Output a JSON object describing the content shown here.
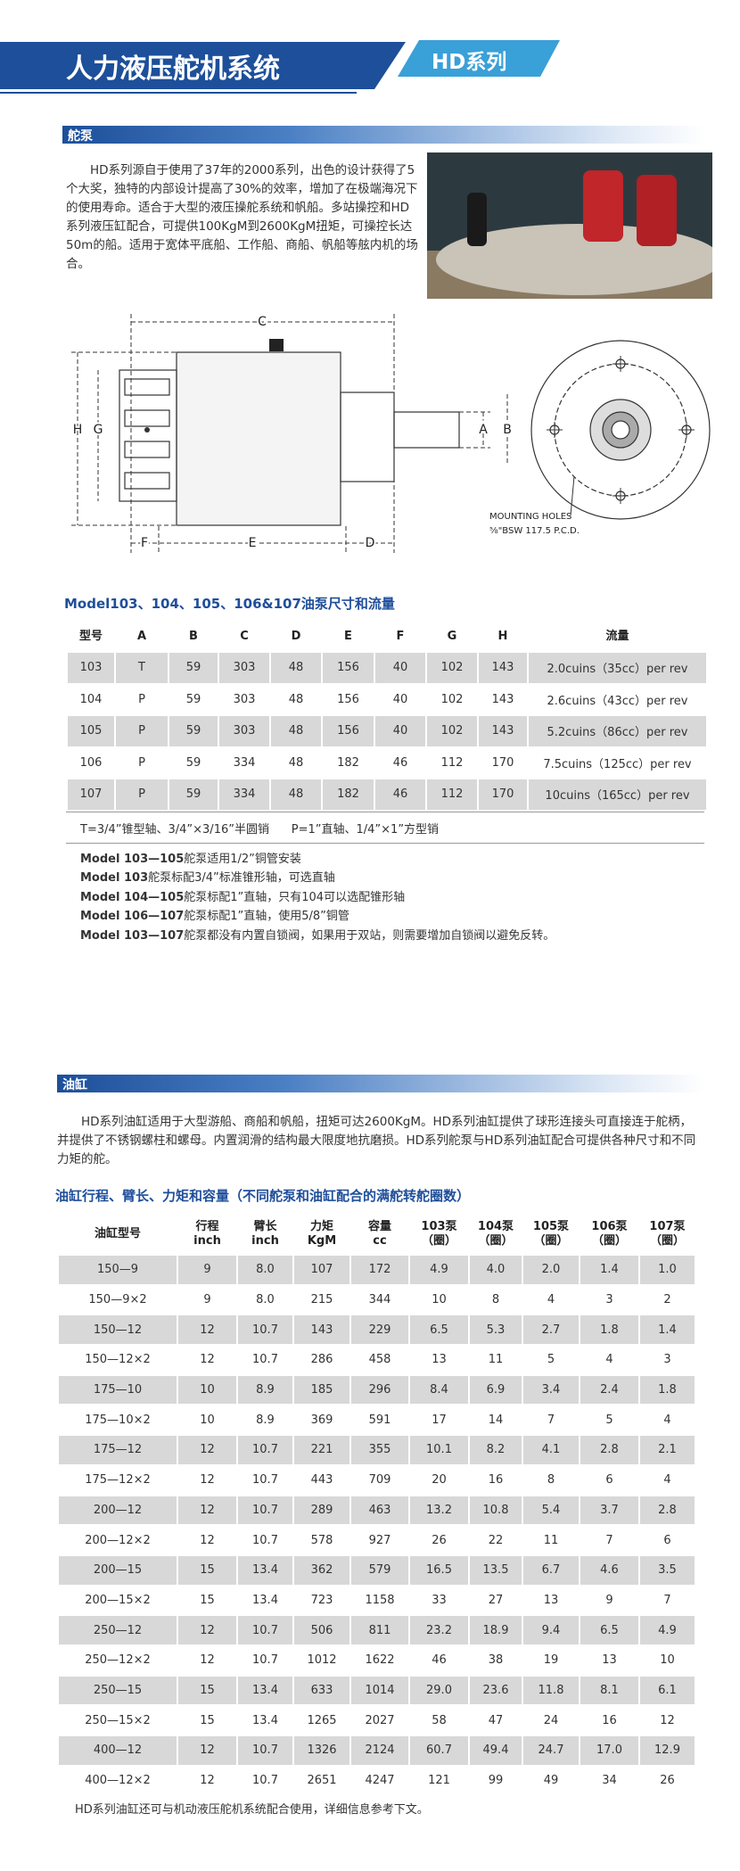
{
  "header": {
    "title": "人力液压舵机系统",
    "series": "HD系列"
  },
  "pump": {
    "heading": "舵泵",
    "paragraph": "HD系列源自于使用了37年的2000系列，出色的设计获得了5个大奖，独特的内部设计提高了30%的效率，增加了在极端海况下的使用寿命。适合于大型的液压操舵系统和帆船。多站操控和HD系列液压缸配合，可提供100KgM到2600KgM扭矩，可操控长达50m的船。适用于宽体平底船、工作船、商船、帆船等舷内机的场合。",
    "drawing_labels": [
      "C",
      "H",
      "G",
      "F",
      "E",
      "D",
      "A",
      "B"
    ],
    "mounting_note": [
      "MOUNTING HOLES",
      "⅝\"BSW  117.5  P.C.D."
    ]
  },
  "pump_table": {
    "title": "Model103、104、105、106&107油泵尺寸和流量",
    "columns": [
      "型号",
      "A",
      "B",
      "C",
      "D",
      "E",
      "F",
      "G",
      "H",
      "流量"
    ],
    "rows": [
      [
        "103",
        "T",
        "59",
        "303",
        "48",
        "156",
        "40",
        "102",
        "143",
        "2.0cuins（35cc）per rev"
      ],
      [
        "104",
        "P",
        "59",
        "303",
        "48",
        "156",
        "40",
        "102",
        "143",
        "2.6cuins（43cc）per rev"
      ],
      [
        "105",
        "P",
        "59",
        "303",
        "48",
        "156",
        "40",
        "102",
        "143",
        "5.2cuins（86cc）per rev"
      ],
      [
        "106",
        "P",
        "59",
        "334",
        "48",
        "182",
        "46",
        "112",
        "170",
        "7.5cuins（125cc）per rev"
      ],
      [
        "107",
        "P",
        "59",
        "334",
        "48",
        "182",
        "46",
        "112",
        "170",
        "10cuins（165cc）per rev"
      ]
    ],
    "note": "T=3/4”锥型轴、3/4”×3/16”半圆销      P=1”直轴、1/4”×1”方型销"
  },
  "model_notes": [
    {
      "model": "Model 103—105",
      "text": "舵泵适用1/2”铜管安装"
    },
    {
      "model": "Model 103",
      "text": "舵泵标配3/4”标准锥形轴，可选直轴"
    },
    {
      "model": "Model 104—105",
      "text": "舵泵标配1”直轴，只有104可以选配锥形轴"
    },
    {
      "model": "Model 106—107",
      "text": "舵泵标配1”直轴，使用5/8”铜管"
    },
    {
      "model": "Model 103—107",
      "text": "舵泵都没有内置自锁阀，如果用于双站，则需要增加自锁阀以避免反转。"
    }
  ],
  "cylinder": {
    "heading": "油缸",
    "paragraph": "HD系列油缸适用于大型游船、商船和帆船，扭矩可达2600KgM。HD系列油缸提供了球形连接头可直接连于舵柄，并提供了不锈钢螺柱和螺母。内置润滑的结构最大限度地抗磨损。HD系列舵泵与HD系列油缸配合可提供各种尺寸和不同力矩的舵。"
  },
  "cylinder_table": {
    "title": "油缸行程、臂长、力矩和容量（不同舵泵和油缸配合的满舵转舵圈数）",
    "columns": [
      [
        "油缸型号"
      ],
      [
        "行程",
        "inch"
      ],
      [
        "臂长",
        "inch"
      ],
      [
        "力矩",
        "KgM"
      ],
      [
        "容量",
        "cc"
      ],
      [
        "103泵",
        "（圈）"
      ],
      [
        "104泵",
        "（圈）"
      ],
      [
        "105泵",
        "（圈）"
      ],
      [
        "106泵",
        "（圈）"
      ],
      [
        "107泵",
        "（圈）"
      ]
    ],
    "rows": [
      [
        "150—9",
        "9",
        "8.0",
        "107",
        "172",
        "4.9",
        "4.0",
        "2.0",
        "1.4",
        "1.0"
      ],
      [
        "150—9×2",
        "9",
        "8.0",
        "215",
        "344",
        "10",
        "8",
        "4",
        "3",
        "2"
      ],
      [
        "150—12",
        "12",
        "10.7",
        "143",
        "229",
        "6.5",
        "5.3",
        "2.7",
        "1.8",
        "1.4"
      ],
      [
        "150—12×2",
        "12",
        "10.7",
        "286",
        "458",
        "13",
        "11",
        "5",
        "4",
        "3"
      ],
      [
        "175—10",
        "10",
        "8.9",
        "185",
        "296",
        "8.4",
        "6.9",
        "3.4",
        "2.4",
        "1.8"
      ],
      [
        "175—10×2",
        "10",
        "8.9",
        "369",
        "591",
        "17",
        "14",
        "7",
        "5",
        "4"
      ],
      [
        "175—12",
        "12",
        "10.7",
        "221",
        "355",
        "10.1",
        "8.2",
        "4.1",
        "2.8",
        "2.1"
      ],
      [
        "175—12×2",
        "12",
        "10.7",
        "443",
        "709",
        "20",
        "16",
        "8",
        "6",
        "4"
      ],
      [
        "200—12",
        "12",
        "10.7",
        "289",
        "463",
        "13.2",
        "10.8",
        "5.4",
        "3.7",
        "2.8"
      ],
      [
        "200—12×2",
        "12",
        "10.7",
        "578",
        "927",
        "26",
        "22",
        "11",
        "7",
        "6"
      ],
      [
        "200—15",
        "15",
        "13.4",
        "362",
        "579",
        "16.5",
        "13.5",
        "6.7",
        "4.6",
        "3.5"
      ],
      [
        "200—15×2",
        "15",
        "13.4",
        "723",
        "1158",
        "33",
        "27",
        "13",
        "9",
        "7"
      ],
      [
        "250—12",
        "12",
        "10.7",
        "506",
        "811",
        "23.2",
        "18.9",
        "9.4",
        "6.5",
        "4.9"
      ],
      [
        "250—12×2",
        "12",
        "10.7",
        "1012",
        "1622",
        "46",
        "38",
        "19",
        "13",
        "10"
      ],
      [
        "250—15",
        "15",
        "13.4",
        "633",
        "1014",
        "29.0",
        "23.6",
        "11.8",
        "8.1",
        "6.1"
      ],
      [
        "250—15×2",
        "15",
        "13.4",
        "1265",
        "2027",
        "58",
        "47",
        "24",
        "16",
        "12"
      ],
      [
        "400—12",
        "12",
        "10.7",
        "1326",
        "2124",
        "60.7",
        "49.4",
        "24.7",
        "17.0",
        "12.9"
      ],
      [
        "400—12×2",
        "12",
        "10.7",
        "2651",
        "4247",
        "121",
        "99",
        "49",
        "34",
        "26"
      ]
    ],
    "footnote": "HD系列油缸还可与机动液压舵机系统配合使用，详细信息参考下文。"
  }
}
